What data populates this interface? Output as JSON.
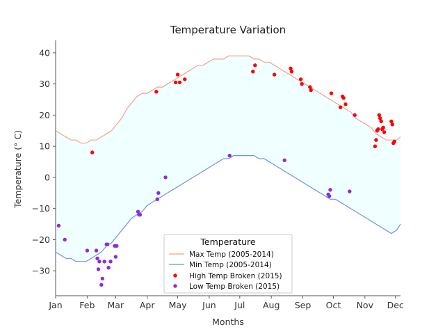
{
  "chart_data": {
    "type": "line",
    "title": "Temperature Variation",
    "xlabel": "Months",
    "ylabel": "Temperature ($^\\circ$C)",
    "ylabel_display": "Temperature (° C)",
    "xlim": [
      0,
      339
    ],
    "ylim": [
      -38,
      44
    ],
    "x_ticks": [
      {
        "day": 0,
        "label": "Jan"
      },
      {
        "day": 31,
        "label": "Feb"
      },
      {
        "day": 59,
        "label": "Mar"
      },
      {
        "day": 90,
        "label": "Apr"
      },
      {
        "day": 120,
        "label": "May"
      },
      {
        "day": 151,
        "label": "Jun"
      },
      {
        "day": 181,
        "label": "Jul"
      },
      {
        "day": 212,
        "label": "Aug"
      },
      {
        "day": 243,
        "label": "Sep"
      },
      {
        "day": 273,
        "label": "Oct"
      },
      {
        "day": 304,
        "label": "Nov"
      },
      {
        "day": 334,
        "label": "Dec"
      }
    ],
    "y_ticks": [
      -30,
      -20,
      -10,
      0,
      10,
      20,
      30,
      40
    ],
    "series": [
      {
        "name": "Max  Temp (2005-2014)",
        "color": "#f4a08f",
        "points": [
          [
            0,
            15
          ],
          [
            5,
            14
          ],
          [
            10,
            13
          ],
          [
            15,
            12
          ],
          [
            20,
            12
          ],
          [
            25,
            11
          ],
          [
            30,
            11
          ],
          [
            35,
            12
          ],
          [
            40,
            12
          ],
          [
            45,
            13
          ],
          [
            50,
            14
          ],
          [
            55,
            15
          ],
          [
            60,
            17
          ],
          [
            65,
            19
          ],
          [
            70,
            22
          ],
          [
            75,
            24
          ],
          [
            80,
            26
          ],
          [
            85,
            27
          ],
          [
            90,
            27
          ],
          [
            95,
            28
          ],
          [
            100,
            29
          ],
          [
            105,
            29
          ],
          [
            110,
            30
          ],
          [
            115,
            31
          ],
          [
            120,
            32
          ],
          [
            125,
            33
          ],
          [
            130,
            34
          ],
          [
            135,
            35
          ],
          [
            140,
            36
          ],
          [
            145,
            36
          ],
          [
            150,
            37
          ],
          [
            155,
            38
          ],
          [
            160,
            38
          ],
          [
            165,
            38
          ],
          [
            170,
            39
          ],
          [
            175,
            39
          ],
          [
            180,
            39
          ],
          [
            185,
            39
          ],
          [
            190,
            39
          ],
          [
            195,
            38
          ],
          [
            200,
            38
          ],
          [
            205,
            37
          ],
          [
            210,
            37
          ],
          [
            215,
            36
          ],
          [
            220,
            35
          ],
          [
            225,
            34
          ],
          [
            230,
            33
          ],
          [
            235,
            32
          ],
          [
            240,
            31
          ],
          [
            245,
            30
          ],
          [
            250,
            29
          ],
          [
            255,
            28
          ],
          [
            260,
            27
          ],
          [
            265,
            26
          ],
          [
            270,
            25
          ],
          [
            275,
            24
          ],
          [
            280,
            23
          ],
          [
            285,
            22
          ],
          [
            290,
            21
          ],
          [
            295,
            19
          ],
          [
            300,
            18
          ],
          [
            305,
            17
          ],
          [
            310,
            16
          ],
          [
            315,
            14
          ],
          [
            320,
            13
          ],
          [
            325,
            12
          ],
          [
            330,
            12
          ],
          [
            335,
            12
          ],
          [
            339,
            13
          ]
        ]
      },
      {
        "name": "Min   Temp (2005-2014)",
        "color": "#7190e6",
        "points": [
          [
            0,
            -24
          ],
          [
            5,
            -25
          ],
          [
            10,
            -26
          ],
          [
            15,
            -26
          ],
          [
            20,
            -27
          ],
          [
            25,
            -27
          ],
          [
            30,
            -27
          ],
          [
            35,
            -26
          ],
          [
            40,
            -25
          ],
          [
            45,
            -24
          ],
          [
            50,
            -22
          ],
          [
            55,
            -21
          ],
          [
            60,
            -19
          ],
          [
            65,
            -17
          ],
          [
            70,
            -15
          ],
          [
            75,
            -13
          ],
          [
            80,
            -12
          ],
          [
            85,
            -11
          ],
          [
            90,
            -9
          ],
          [
            95,
            -8
          ],
          [
            100,
            -7
          ],
          [
            105,
            -6
          ],
          [
            110,
            -5
          ],
          [
            115,
            -4
          ],
          [
            120,
            -3
          ],
          [
            125,
            -2
          ],
          [
            130,
            -1
          ],
          [
            135,
            0
          ],
          [
            140,
            1
          ],
          [
            145,
            2
          ],
          [
            150,
            3
          ],
          [
            155,
            4
          ],
          [
            160,
            5
          ],
          [
            165,
            6
          ],
          [
            170,
            6
          ],
          [
            175,
            7
          ],
          [
            180,
            7
          ],
          [
            185,
            7
          ],
          [
            190,
            7
          ],
          [
            195,
            7
          ],
          [
            200,
            6
          ],
          [
            205,
            6
          ],
          [
            210,
            5
          ],
          [
            215,
            4
          ],
          [
            220,
            3
          ],
          [
            225,
            2
          ],
          [
            230,
            1
          ],
          [
            235,
            0
          ],
          [
            240,
            -1
          ],
          [
            245,
            -2
          ],
          [
            250,
            -3
          ],
          [
            255,
            -4
          ],
          [
            260,
            -5
          ],
          [
            265,
            -6
          ],
          [
            270,
            -7
          ],
          [
            275,
            -7
          ],
          [
            280,
            -8
          ],
          [
            285,
            -9
          ],
          [
            290,
            -10
          ],
          [
            295,
            -11
          ],
          [
            300,
            -12
          ],
          [
            305,
            -13
          ],
          [
            310,
            -14
          ],
          [
            315,
            -15
          ],
          [
            320,
            -16
          ],
          [
            325,
            -17
          ],
          [
            330,
            -18
          ],
          [
            335,
            -17
          ],
          [
            339,
            -15
          ]
        ]
      }
    ],
    "scatter_series": [
      {
        "name": "High Temp Broken (2015)",
        "color": "#ff0000",
        "points": [
          [
            36,
            8
          ],
          [
            99,
            27.5
          ],
          [
            118,
            30.5
          ],
          [
            120,
            33
          ],
          [
            122,
            30.5
          ],
          [
            127,
            31.5
          ],
          [
            194,
            34
          ],
          [
            196,
            36
          ],
          [
            215,
            33
          ],
          [
            231,
            35
          ],
          [
            232,
            34
          ],
          [
            241,
            31.5
          ],
          [
            242,
            30
          ],
          [
            250,
            29
          ],
          [
            251,
            28
          ],
          [
            271,
            27
          ],
          [
            280,
            22.5
          ],
          [
            282,
            26
          ],
          [
            283,
            25.5
          ],
          [
            285,
            23.5
          ],
          [
            294,
            20
          ],
          [
            314,
            10
          ],
          [
            315,
            12
          ],
          [
            316,
            15
          ],
          [
            317,
            15.5
          ],
          [
            318,
            20
          ],
          [
            319,
            19
          ],
          [
            320,
            18
          ],
          [
            321,
            15.5
          ],
          [
            322,
            16
          ],
          [
            323,
            14.5
          ],
          [
            330,
            18
          ],
          [
            331,
            17
          ],
          [
            332,
            11
          ],
          [
            333,
            11.5
          ]
        ]
      },
      {
        "name": "Low  Temp Broken (2015)",
        "color": "#8b2be2",
        "points": [
          [
            3,
            -15.5
          ],
          [
            9,
            -20
          ],
          [
            31,
            -23.5
          ],
          [
            40,
            -23.5
          ],
          [
            41,
            -26
          ],
          [
            42,
            -29.5
          ],
          [
            43,
            -27
          ],
          [
            45,
            -34.5
          ],
          [
            46,
            -32.5
          ],
          [
            48,
            -27
          ],
          [
            50,
            -21.5
          ],
          [
            51,
            -21.5
          ],
          [
            52,
            -29
          ],
          [
            54,
            -27
          ],
          [
            58,
            -22
          ],
          [
            59,
            -25.5
          ],
          [
            60,
            -22
          ],
          [
            81,
            -11
          ],
          [
            82,
            -12
          ],
          [
            83,
            -12
          ],
          [
            100,
            -7
          ],
          [
            101,
            -5
          ],
          [
            108,
            0
          ],
          [
            171,
            7
          ],
          [
            225,
            5.5
          ],
          [
            268,
            -5.5
          ],
          [
            269,
            -6
          ],
          [
            270,
            -4
          ],
          [
            289,
            -4.5
          ]
        ]
      }
    ],
    "fill_between": {
      "lower": "Min   Temp (2005-2014)",
      "upper": "Max  Temp (2005-2014)",
      "color": "#f0ffff"
    },
    "legend": {
      "title": "Temperature",
      "placement": "lower-center"
    }
  }
}
